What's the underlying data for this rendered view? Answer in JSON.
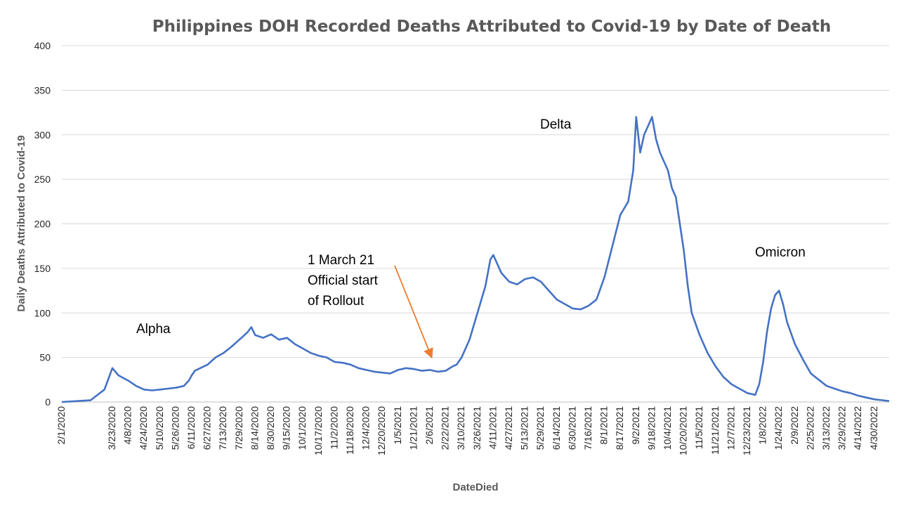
{
  "chart_data": {
    "type": "line",
    "title": "Philippines DOH Recorded Deaths Attributed to Covid-19 by Date of Death",
    "xlabel": "DateDied",
    "ylabel": "Daily Deaths Attributed to Covid-19",
    "ylim": [
      0,
      400
    ],
    "yticks": [
      0,
      50,
      100,
      150,
      200,
      250,
      300,
      350,
      400
    ],
    "grid": true,
    "legend": "none",
    "line_color": "#4472C4",
    "x_tick_labels": [
      "2/1/2020",
      "3/23/2020",
      "4/8/2020",
      "4/24/2020",
      "5/10/2020",
      "5/26/2020",
      "6/11/2020",
      "6/27/2020",
      "7/13/2020",
      "7/29/2020",
      "8/14/2020",
      "8/30/2020",
      "9/15/2020",
      "10/1/2020",
      "10/17/2020",
      "11/2/2020",
      "11/18/2020",
      "12/4/2020",
      "12/20/2020",
      "1/5/2021",
      "1/21/2021",
      "2/6/2021",
      "2/22/2021",
      "3/10/2021",
      "3/26/2021",
      "4/11/2021",
      "4/27/2021",
      "5/13/2021",
      "5/29/2021",
      "6/14/2021",
      "6/30/2021",
      "7/16/2021",
      "8/1/2021",
      "8/17/2021",
      "9/2/2021",
      "9/18/2021",
      "10/4/2021",
      "10/20/2021",
      "11/5/2021",
      "11/21/2021",
      "12/7/2021",
      "12/23/2021",
      "1/8/2022",
      "1/24/2022",
      "2/9/2022",
      "2/25/2022",
      "3/13/2022",
      "3/29/2022",
      "4/14/2022",
      "4/30/2022"
    ],
    "series": [
      {
        "x": [
          "2020-02-01",
          "2020-03-01",
          "2020-03-15",
          "2020-03-23",
          "2020-03-29",
          "2020-04-08",
          "2020-04-16",
          "2020-04-24",
          "2020-05-02",
          "2020-05-10",
          "2020-05-18",
          "2020-05-26",
          "2020-06-03",
          "2020-06-08",
          "2020-06-11",
          "2020-06-14",
          "2020-06-27",
          "2020-07-05",
          "2020-07-13",
          "2020-07-21",
          "2020-07-29",
          "2020-08-06",
          "2020-08-10",
          "2020-08-14",
          "2020-08-22",
          "2020-08-30",
          "2020-09-07",
          "2020-09-15",
          "2020-09-23",
          "2020-10-01",
          "2020-10-09",
          "2020-10-17",
          "2020-10-25",
          "2020-11-02",
          "2020-11-10",
          "2020-11-18",
          "2020-11-26",
          "2020-12-04",
          "2020-12-12",
          "2020-12-20",
          "2020-12-28",
          "2021-01-05",
          "2021-01-13",
          "2021-01-21",
          "2021-01-29",
          "2021-02-06",
          "2021-02-14",
          "2021-02-22",
          "2021-03-01",
          "2021-03-05",
          "2021-03-10",
          "2021-03-18",
          "2021-03-26",
          "2021-04-03",
          "2021-04-08",
          "2021-04-11",
          "2021-04-19",
          "2021-04-27",
          "2021-05-05",
          "2021-05-13",
          "2021-05-21",
          "2021-05-29",
          "2021-06-06",
          "2021-06-14",
          "2021-06-22",
          "2021-06-30",
          "2021-07-08",
          "2021-07-16",
          "2021-07-24",
          "2021-08-01",
          "2021-08-09",
          "2021-08-17",
          "2021-08-25",
          "2021-08-30",
          "2021-09-02",
          "2021-09-06",
          "2021-09-10",
          "2021-09-14",
          "2021-09-18",
          "2021-09-22",
          "2021-09-26",
          "2021-10-04",
          "2021-10-08",
          "2021-10-12",
          "2021-10-20",
          "2021-10-24",
          "2021-10-28",
          "2021-11-05",
          "2021-11-13",
          "2021-11-21",
          "2021-11-29",
          "2021-12-07",
          "2021-12-15",
          "2021-12-23",
          "2021-12-31",
          "2022-01-04",
          "2022-01-08",
          "2022-01-12",
          "2022-01-16",
          "2022-01-20",
          "2022-01-24",
          "2022-01-28",
          "2022-02-01",
          "2022-02-09",
          "2022-02-17",
          "2022-02-25",
          "2022-03-05",
          "2022-03-13",
          "2022-03-21",
          "2022-03-29",
          "2022-04-06",
          "2022-04-14",
          "2022-04-22",
          "2022-04-30",
          "2022-05-08",
          "2022-05-15"
        ],
        "y": [
          0,
          2,
          14,
          38,
          30,
          24,
          18,
          14,
          13,
          14,
          15,
          16,
          18,
          24,
          30,
          35,
          42,
          50,
          55,
          62,
          70,
          78,
          84,
          75,
          72,
          76,
          70,
          72,
          65,
          60,
          55,
          52,
          50,
          45,
          44,
          42,
          38,
          36,
          34,
          33,
          32,
          36,
          38,
          37,
          35,
          36,
          34,
          35,
          40,
          42,
          50,
          70,
          100,
          130,
          160,
          165,
          145,
          135,
          132,
          138,
          140,
          135,
          125,
          115,
          110,
          105,
          104,
          108,
          115,
          140,
          175,
          210,
          225,
          260,
          320,
          280,
          300,
          310,
          320,
          295,
          280,
          260,
          240,
          230,
          170,
          130,
          100,
          75,
          55,
          40,
          28,
          20,
          15,
          10,
          8,
          20,
          45,
          80,
          105,
          120,
          125,
          110,
          90,
          65,
          48,
          32,
          25,
          18,
          15,
          12,
          10,
          7,
          5,
          3,
          2,
          1
        ]
      }
    ],
    "annotations": [
      {
        "text": "Alpha"
      },
      {
        "text": "1 March 21",
        "line2": "Official start",
        "line3": "of Rollout",
        "arrow_to": "2021-03-01"
      },
      {
        "text": "Delta"
      },
      {
        "text": "Omicron"
      }
    ]
  }
}
